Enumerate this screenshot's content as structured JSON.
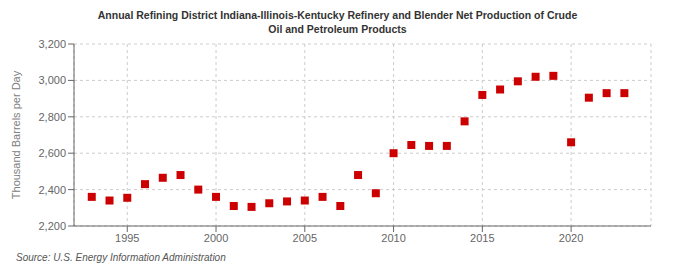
{
  "chart_data": {
    "type": "scatter",
    "title": "Annual Refining District Indiana-Illinois-Kentucky Refinery and Blender Net Production of Crude\nOil and Petroleum Products",
    "ylabel": "Thousand Barrels per Day",
    "annotations": [
      "Source: U.S. Energy Information Administration"
    ],
    "x": [
      1993,
      1994,
      1995,
      1996,
      1997,
      1998,
      1999,
      2000,
      2001,
      2002,
      2003,
      2004,
      2005,
      2006,
      2007,
      2008,
      2009,
      2010,
      2011,
      2012,
      2013,
      2014,
      2015,
      2016,
      2017,
      2018,
      2019,
      2020,
      2021,
      2022,
      2023
    ],
    "values": [
      2360,
      2340,
      2355,
      2430,
      2465,
      2480,
      2400,
      2360,
      2310,
      2305,
      2325,
      2335,
      2340,
      2360,
      2310,
      2480,
      2380,
      2600,
      2645,
      2640,
      2640,
      2775,
      2920,
      2950,
      2995,
      3020,
      3025,
      2660,
      2905,
      2930,
      2930
    ],
    "color": "#cc0000",
    "marker": "square",
    "xlim": [
      1992,
      2024.5
    ],
    "xticks": [
      1995,
      2000,
      2005,
      2010,
      2015,
      2020
    ],
    "ylim": [
      2200,
      3200
    ],
    "yticks": [
      {
        "value": 2200,
        "label": "2,200"
      },
      {
        "value": 2400,
        "label": "2,400"
      },
      {
        "value": 2600,
        "label": "2,600"
      },
      {
        "value": 2800,
        "label": "2,800"
      },
      {
        "value": 3000,
        "label": "3,000"
      },
      {
        "value": 3200,
        "label": "3,200"
      }
    ],
    "grid": true
  }
}
